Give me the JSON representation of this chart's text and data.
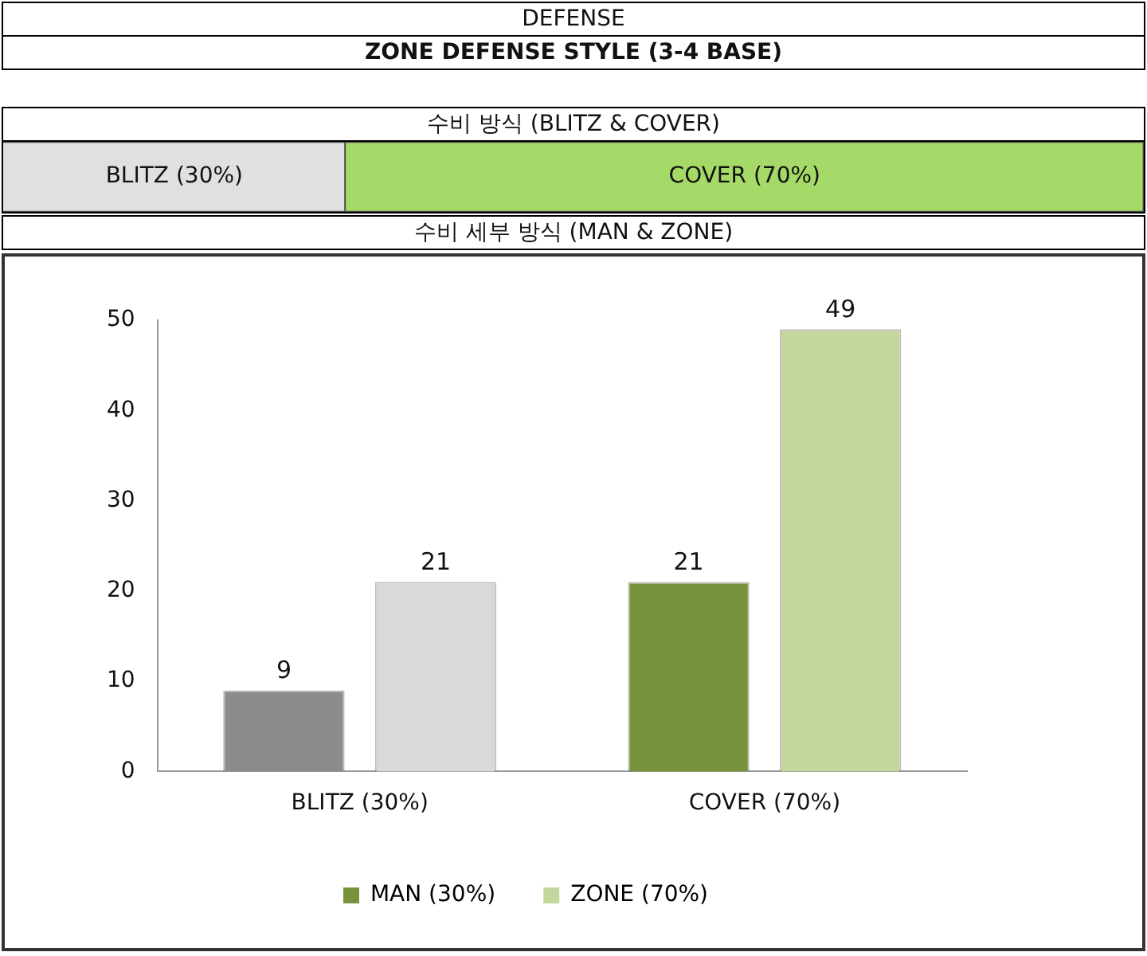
{
  "chart_data": [
    {
      "type": "other",
      "title": "DEFENSE",
      "subtitle": "ZONE DEFENSE STYLE (3-4 BASE)"
    },
    {
      "type": "bar",
      "title": "수비 방식 (BLITZ & COVER)",
      "orientation": "horizontal",
      "stacked": true,
      "categories": [
        null
      ],
      "series": [
        {
          "color": "#e0e0e0",
          "values": [
            30
          ],
          "value_labels": [
            "BLITZ (30%)"
          ]
        },
        {
          "color": "#a6da68",
          "values": [
            70
          ],
          "value_labels": [
            "COVER (70%)"
          ]
        }
      ],
      "tick_labels": false,
      "legend": false
    },
    {
      "type": "bar",
      "title": "수비 세부 방식 (MAN & ZONE)",
      "categories": [
        "BLITZ (30%)",
        "COVER (70%)"
      ],
      "series": [
        {
          "name": "MAN (30%)",
          "color": "#77933c",
          "colors": [
            "#8c8c8c",
            "#77933c"
          ],
          "values": [
            9,
            21
          ]
        },
        {
          "name": "ZONE (70%)",
          "color": "#c3d69b",
          "colors": [
            "#d9d9d9",
            "#c3d69b"
          ],
          "values": [
            21,
            49
          ]
        }
      ],
      "ylim": [
        0,
        50
      ],
      "yticks": [
        0,
        10,
        20,
        30,
        40,
        50
      ],
      "grid": false,
      "legend": "bottom",
      "data_labels": true
    }
  ]
}
